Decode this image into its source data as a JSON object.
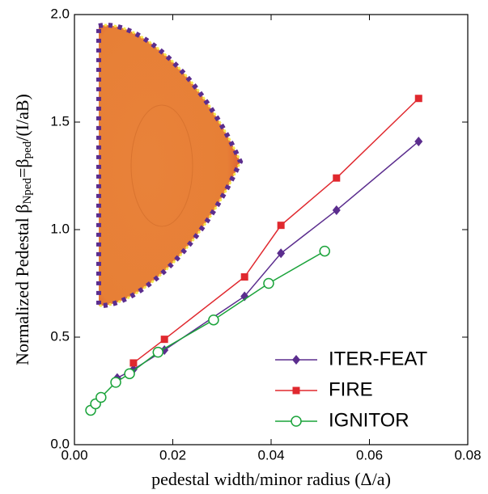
{
  "chart_data": {
    "type": "line",
    "xlabel": "pedestal width/minor radius (Δ/a)",
    "ylabel": [
      "Normalized Pedestal β",
      "Nped",
      "=β",
      "ped",
      "/(I/aB)"
    ],
    "xlim": [
      0,
      0.08
    ],
    "ylim": [
      0,
      2
    ],
    "xticks": [
      {
        "value": 0,
        "label": "0.00"
      },
      0.02,
      0.04,
      0.06,
      0.08
    ],
    "yticks": [
      {
        "value": 0,
        "label": "0.0"
      },
      0.5,
      {
        "value": 1,
        "label": "1.0"
      },
      1.5,
      {
        "value": 2,
        "label": "2.0"
      }
    ],
    "legend": "lower right",
    "series": [
      {
        "name": "ITER-FEAT",
        "color": "#5b2d8e",
        "marker": "diamond",
        "x": [
          0.0087,
          0.012,
          0.0183,
          0.0346,
          0.042,
          0.0533,
          0.07
        ],
        "values": [
          0.31,
          0.35,
          0.44,
          0.69,
          0.89,
          1.09,
          1.41
        ]
      },
      {
        "name": "FIRE",
        "color": "#e0282e",
        "marker": "square",
        "x": [
          0.012,
          0.0183,
          0.0346,
          0.042,
          0.0533,
          0.07
        ],
        "values": [
          0.38,
          0.49,
          0.78,
          1.02,
          1.24,
          1.61
        ]
      },
      {
        "name": "IGNITOR",
        "color": "#1aa33a",
        "marker": "circle",
        "x": [
          0.0033,
          0.0043,
          0.0054,
          0.0084,
          0.0112,
          0.017,
          0.0283,
          0.0395,
          0.0509
        ],
        "values": [
          0.16,
          0.19,
          0.22,
          0.29,
          0.33,
          0.43,
          0.58,
          0.75,
          0.9
        ]
      }
    ]
  }
}
